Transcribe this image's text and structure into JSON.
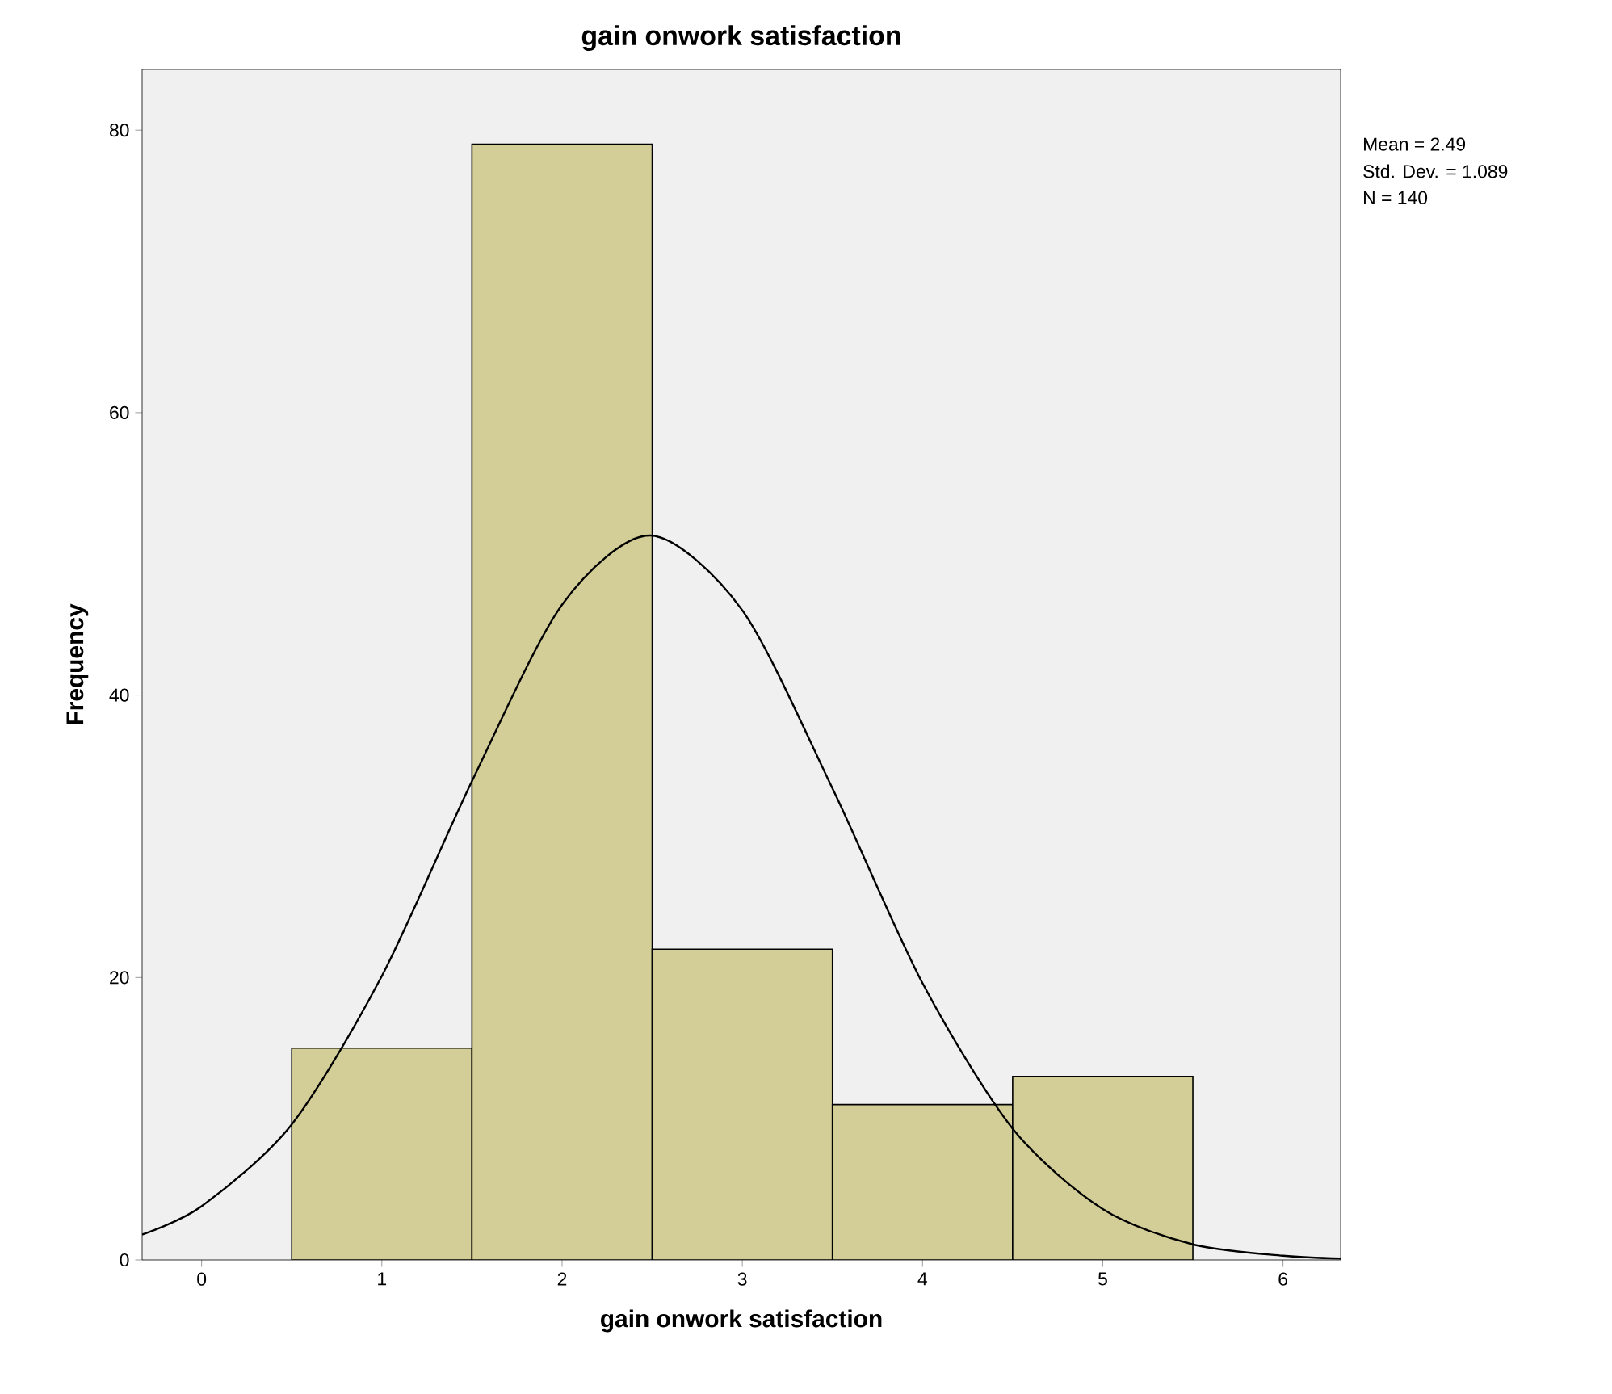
{
  "chart_data": {
    "type": "histogram",
    "title": "gain onwork satisfaction",
    "xlabel": "gain onwork satisfaction",
    "ylabel": "Frequency",
    "bins": [
      0.5,
      1.5,
      2.5,
      3.5,
      4.5,
      5.5
    ],
    "values": [
      15,
      79,
      22,
      11,
      13
    ],
    "color": "#d3ce97",
    "series": [
      {
        "type": "line",
        "color": "#000000",
        "x": [
          -0.33,
          0,
          0.5,
          1,
          1.5,
          2,
          2.49,
          3,
          3.5,
          4,
          4.5,
          5,
          5.5,
          6,
          6.32
        ],
        "values": [
          1.8,
          3.8,
          9.6,
          20.1,
          33.9,
          46.4,
          51.3,
          46.0,
          33.4,
          19.6,
          9.3,
          3.6,
          1.1,
          0.3,
          0.1
        ]
      }
    ],
    "xlim": [
      -0.33,
      6.32
    ],
    "ylim": [
      0,
      84.3
    ],
    "xticks": [
      0,
      1,
      2,
      3,
      4,
      5,
      6
    ],
    "yticks": [
      0,
      20,
      40,
      60,
      80
    ],
    "grid": false,
    "annotations": [
      "Mean = 2.49",
      "Std. Dev. = 1.089",
      "N = 140"
    ]
  }
}
